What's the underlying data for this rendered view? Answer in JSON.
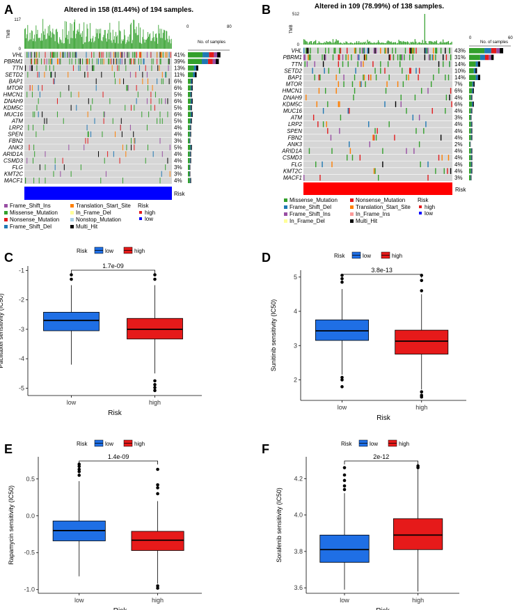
{
  "chart_data": [
    {
      "type": "oncoplot",
      "panel": "A",
      "title": "Altered in 158 (81.44%) of 194 samples.",
      "tmb_label": "TMB",
      "tmb_max": "117",
      "tmb_min": "0",
      "samples_axis_label": "No. of samples",
      "samples_axis_ticks": [
        "0",
        "80"
      ],
      "sample_count": 194,
      "genes": [
        "VHL",
        "PBRM1",
        "TTN",
        "SETD2",
        "BAP1",
        "MTOR",
        "HMCN1",
        "DNAH9",
        "KDM5C",
        "MUC16",
        "ATM",
        "LRP2",
        "SPEN",
        "FBN2",
        "ANK3",
        "ARID1A",
        "CSMD3",
        "FLG",
        "KMT2C",
        "MACF1"
      ],
      "percent": [
        "41%",
        "39%",
        "13%",
        "11%",
        "6%",
        "6%",
        "5%",
        "6%",
        "5%",
        "6%",
        "5%",
        "4%",
        "4%",
        "3%",
        "5%",
        "4%",
        "4%",
        "3%",
        "3%",
        "4%"
      ],
      "risk_label": "Risk",
      "risk_color": "#0000ff",
      "legend_title": "Risk",
      "legend_items": [
        {
          "label": "Frame_Shift_Ins",
          "color": "#984ea3"
        },
        {
          "label": "Missense_Mutation",
          "color": "#33a02c"
        },
        {
          "label": "Nonsense_Mutation",
          "color": "#e31a1c"
        },
        {
          "label": "Frame_Shift_Del",
          "color": "#1f78b4"
        },
        {
          "label": "Translation_Start_Site",
          "color": "#ff7f00"
        },
        {
          "label": "In_Frame_Del",
          "color": "#ffff99"
        },
        {
          "label": "Nonstop_Mutation",
          "color": "#a6cee3"
        },
        {
          "label": "Multi_Hit",
          "color": "#000000"
        }
      ],
      "risk_legend": [
        {
          "label": "high",
          "color": "#e31a1c"
        },
        {
          "label": "low",
          "color": "#0000ff"
        }
      ]
    },
    {
      "type": "oncoplot",
      "panel": "B",
      "title": "Altered in 109 (78.99%) of 138 samples.",
      "tmb_label": "TMB",
      "tmb_max": "512",
      "tmb_min": "0",
      "samples_axis_label": "No. of samples",
      "samples_axis_ticks": [
        "0",
        "60"
      ],
      "sample_count": 138,
      "genes": [
        "VHL",
        "PBRM1",
        "TTN",
        "SETD2",
        "BAP1",
        "MTOR",
        "HMCN1",
        "DNAH9",
        "KDM5C",
        "MUC16",
        "ATM",
        "LRP2",
        "SPEN",
        "FBN2",
        "ANK3",
        "ARID1A",
        "CSMD3",
        "FLG",
        "KMT2C",
        "MACF1"
      ],
      "percent": [
        "43%",
        "31%",
        "14%",
        "10%",
        "14%",
        "7%",
        "6%",
        "4%",
        "6%",
        "4%",
        "3%",
        "4%",
        "4%",
        "4%",
        "2%",
        "4%",
        "4%",
        "4%",
        "4%",
        "3%"
      ],
      "risk_label": "Risk",
      "risk_color": "#ff0000",
      "legend_title": "Risk",
      "legend_items": [
        {
          "label": "Missense_Mutation",
          "color": "#33a02c"
        },
        {
          "label": "Frame_Shift_Del",
          "color": "#1f78b4"
        },
        {
          "label": "Frame_Shift_Ins",
          "color": "#984ea3"
        },
        {
          "label": "In_Frame_Del",
          "color": "#ffff99"
        },
        {
          "label": "Nonsense_Mutation",
          "color": "#e31a1c"
        },
        {
          "label": "Translation_Start_Site",
          "color": "#ff7f00"
        },
        {
          "label": "In_Frame_Ins",
          "color": "#fb9a99"
        },
        {
          "label": "Multi_Hit",
          "color": "#000000"
        }
      ],
      "risk_legend": [
        {
          "label": "high",
          "color": "#e31a1c"
        },
        {
          "label": "low",
          "color": "#0000ff"
        }
      ]
    },
    {
      "type": "boxplot",
      "panel": "C",
      "legend_title": "Risk",
      "legend": [
        "low",
        "high"
      ],
      "colors": {
        "low": "#1f6fe5",
        "high": "#e61a1a"
      },
      "xlabel": "Risk",
      "categories": [
        "low",
        "high"
      ],
      "ylabel": "Paclitaxel sensitivity (IC50)",
      "ylim": [
        -5.25,
        -0.85
      ],
      "yticks": [
        -5,
        -4,
        -3,
        -2,
        -1
      ],
      "pvalue": "1.7e-09",
      "boxes": [
        {
          "min": -4.2,
          "q1": -3.05,
          "median": -2.7,
          "q3": -2.42,
          "max": -1.5,
          "outliers": [
            -1.15,
            -1.3
          ]
        },
        {
          "min": -4.5,
          "q1": -3.33,
          "median": -3.0,
          "q3": -2.63,
          "max": -1.5,
          "outliers": [
            -1.15,
            -1.3,
            -4.75,
            -4.88,
            -4.98,
            -5.08
          ]
        }
      ]
    },
    {
      "type": "boxplot",
      "panel": "D",
      "legend_title": "Risk",
      "legend": [
        "low",
        "high"
      ],
      "colors": {
        "low": "#1f6fe5",
        "high": "#e61a1a"
      },
      "xlabel": "Risk",
      "categories": [
        "low",
        "high"
      ],
      "ylabel": "Sunitinib sensitivity (IC50)",
      "ylim": [
        1.4,
        5.2
      ],
      "yticks": [
        2,
        3,
        4,
        5
      ],
      "pvalue": "3.8e-13",
      "boxes": [
        {
          "min": 2.15,
          "q1": 3.15,
          "median": 3.43,
          "q3": 3.75,
          "max": 4.65,
          "outliers": [
            4.85,
            4.95,
            5.05,
            2.07,
            2.0,
            1.8
          ]
        },
        {
          "min": 1.72,
          "q1": 2.75,
          "median": 3.13,
          "q3": 3.45,
          "max": 4.5,
          "outliers": [
            5.05,
            4.9,
            4.6,
            1.65,
            1.55,
            1.5
          ]
        }
      ]
    },
    {
      "type": "boxplot",
      "panel": "E",
      "legend_title": "Risk",
      "legend": [
        "low",
        "high"
      ],
      "colors": {
        "low": "#1f6fe5",
        "high": "#e61a1a"
      },
      "xlabel": "Risk",
      "categories": [
        "low",
        "high"
      ],
      "ylabel": "Rapamycin sensitivity (IC50)",
      "ylim": [
        -1.05,
        0.8
      ],
      "yticks": [
        0.5,
        0.0,
        -0.5,
        -1.0
      ],
      "pvalue": "1.4e-09",
      "boxes": [
        {
          "min": -0.82,
          "q1": -0.34,
          "median": -0.2,
          "q3": -0.07,
          "max": 0.47,
          "outliers": [
            0.55,
            0.6,
            0.63,
            0.67,
            0.7
          ]
        },
        {
          "min": -0.92,
          "q1": -0.47,
          "median": -0.33,
          "q3": -0.21,
          "max": 0.2,
          "outliers": [
            0.63,
            0.42,
            0.38,
            0.3,
            -0.95,
            -0.98
          ]
        }
      ]
    },
    {
      "type": "boxplot",
      "panel": "F",
      "legend_title": "Risk",
      "legend": [
        "low",
        "high"
      ],
      "colors": {
        "low": "#1f6fe5",
        "high": "#e61a1a"
      },
      "xlabel": "Risk",
      "categories": [
        "low",
        "high"
      ],
      "ylabel": "Sorafenib sensitivity (IC50)",
      "ylim": [
        3.57,
        4.32
      ],
      "yticks": [
        3.6,
        3.8,
        4.0,
        4.2
      ],
      "pvalue": "2e-12",
      "boxes": [
        {
          "min": 3.59,
          "q1": 3.74,
          "median": 3.81,
          "q3": 3.89,
          "max": 4.12,
          "outliers": [
            4.14,
            4.16,
            4.19,
            4.22,
            4.26
          ]
        },
        {
          "min": 3.58,
          "q1": 3.81,
          "median": 3.89,
          "q3": 3.98,
          "max": 4.25,
          "outliers": [
            4.26,
            4.27
          ]
        }
      ]
    }
  ]
}
